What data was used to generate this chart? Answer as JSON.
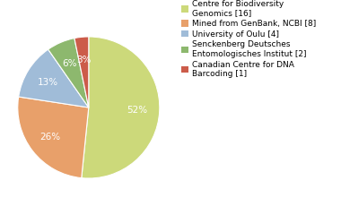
{
  "labels": [
    "Centre for Biodiversity\nGenomics [16]",
    "Mined from GenBank, NCBI [8]",
    "University of Oulu [4]",
    "Senckenberg Deutsches\nEntomologisches Institut [2]",
    "Canadian Centre for DNA\nBarcoding [1]"
  ],
  "values": [
    16,
    8,
    4,
    2,
    1
  ],
  "colors": [
    "#ccd97a",
    "#e8a06a",
    "#a0bcd8",
    "#8db86e",
    "#cc5c4a"
  ],
  "startangle": 90,
  "background_color": "#ffffff",
  "text_color": "#ffffff",
  "pct_fontsize": 7.5,
  "legend_fontsize": 6.5
}
